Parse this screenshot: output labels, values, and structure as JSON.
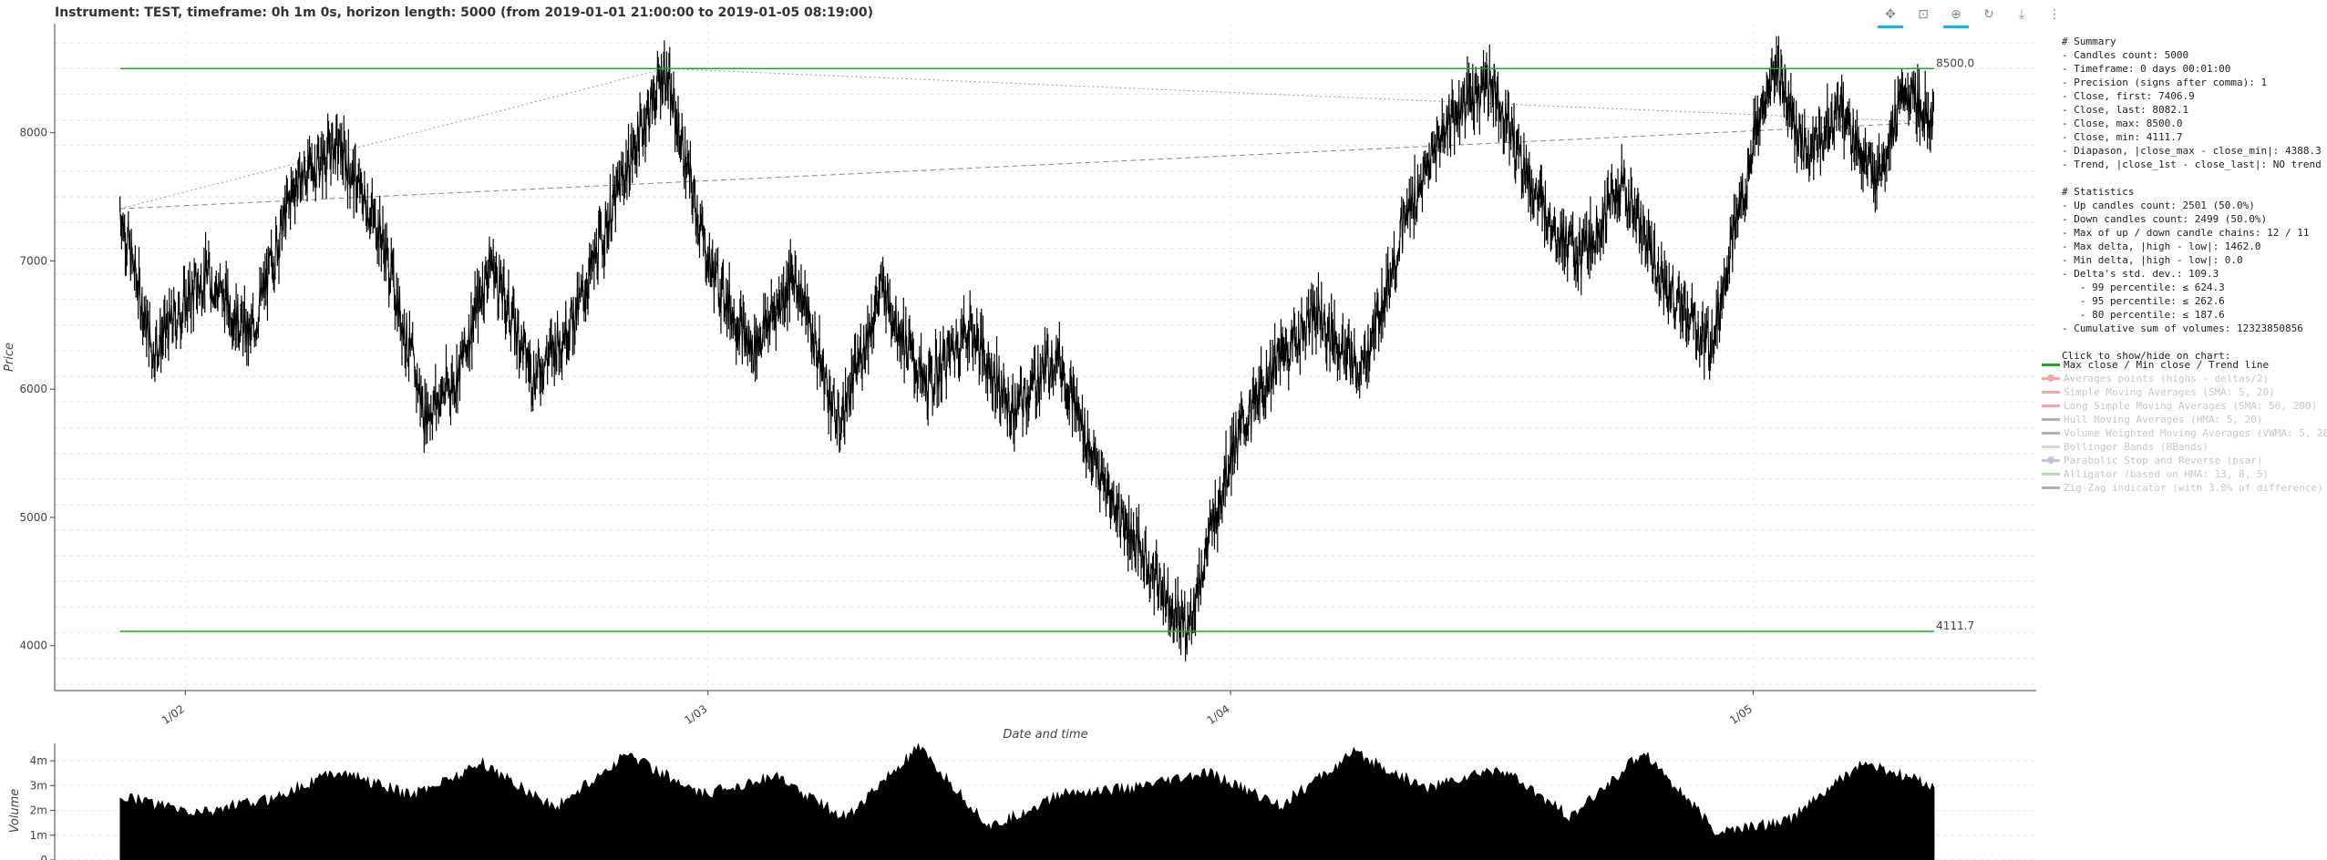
{
  "header": {
    "title": "Instrument: TEST, timeframe: 0h 1m 0s, horizon length: 5000 (from 2019-01-01 21:00:00 to 2019-01-05 08:19:00)"
  },
  "toolbar": {
    "tools": [
      {
        "name": "pan-tool",
        "glyph": "✥",
        "active": true
      },
      {
        "name": "box-zoom-tool",
        "glyph": "⊡",
        "active": false
      },
      {
        "name": "wheel-zoom-tool",
        "glyph": "⊕",
        "active": true
      },
      {
        "name": "reset-tool",
        "glyph": "↻",
        "active": false
      },
      {
        "name": "save-tool",
        "glyph": "⤓",
        "active": false
      },
      {
        "name": "more-tool",
        "glyph": "⋮",
        "active": false
      }
    ]
  },
  "summary": {
    "lines": [
      "# Summary",
      "- Candles count: 5000",
      "- Timeframe: 0 days 00:01:00",
      "- Precision (signs after comma): 1",
      "- Close, first: 7406.9",
      "- Close, last: 8082.1",
      "- Close, max: 8500.0",
      "- Close, min: 4111.7",
      "- Diapason, |close_max - close_min|: 4388.3",
      "- Trend, |close_1st - close_last|: NO trend",
      "",
      "# Statistics",
      "- Up candles count: 2501 (50.0%)",
      "- Down candles count: 2499 (50.0%)",
      "- Max of up / down candle chains: 12 / 11",
      "- Max delta, |high - low|: 1462.0",
      "- Min delta, |high - low|: 0.0",
      "- Delta's std. dev.: 109.3",
      "   - 99 percentile: ≤ 624.3",
      "   - 95 percentile: ≤ 262.6",
      "   - 80 percentile: ≤ 187.6",
      "- Cumulative sum of volumes: 12323850856",
      "",
      "Click to show/hide on chart:"
    ]
  },
  "legend": {
    "items": [
      {
        "label": "Max close / Min close / Trend line",
        "color": "#2ca02c",
        "muted": false,
        "marker": "line"
      },
      {
        "label": "Averages points (highs - deltas/2)",
        "color": "#f4a6a6",
        "muted": true,
        "marker": "dot"
      },
      {
        "label": "Simple Moving Averages (SMA: 5, 20)",
        "color": "#f4a6a6",
        "muted": true,
        "marker": "line"
      },
      {
        "label": "Long Simple Moving Averages (SMA: 50, 200)",
        "color": "#f4a6a6",
        "muted": true,
        "marker": "line"
      },
      {
        "label": "Hull Moving Averages (HMA: 5, 20)",
        "color": "#b0b0b0",
        "muted": true,
        "marker": "line"
      },
      {
        "label": "Volume Weighted Moving Averages (VWMA: 5, 20)",
        "color": "#b0b0b0",
        "muted": true,
        "marker": "line"
      },
      {
        "label": "Bollinger Bands (BBands)",
        "color": "#d8d8d8",
        "muted": true,
        "marker": "line"
      },
      {
        "label": "Parabolic Stop and Reverse (psar)",
        "color": "#c0c8d8",
        "muted": true,
        "marker": "dot"
      },
      {
        "label": "Alligator (based on HMA: 13, 8, 5)",
        "color": "#b8d8b8",
        "muted": true,
        "marker": "line"
      },
      {
        "label": "Zig-Zag indicator (with 3.0% of difference)",
        "color": "#b0b0b0",
        "muted": true,
        "marker": "line"
      }
    ]
  },
  "chart_data": [
    {
      "type": "line",
      "xlabel": "Date and time",
      "ylabel": "Price",
      "x_ticks": [
        "1/02",
        "1/03",
        "1/04",
        "1/05"
      ],
      "y_ticks": [
        4000,
        5000,
        6000,
        7000,
        8000
      ],
      "ylim": [
        3650,
        8850
      ],
      "xlim": [
        "2019-01-01 18:00",
        "2019-01-05 13:00"
      ],
      "grid": true,
      "close_path": [
        [
          "2019-01-01 21:00",
          7406.9
        ],
        [
          "2019-01-01 22:30",
          6300
        ],
        [
          "2019-01-02 01:00",
          6900
        ],
        [
          "2019-01-02 03:00",
          6400
        ],
        [
          "2019-01-02 05:00",
          7600
        ],
        [
          "2019-01-02 07:00",
          7900
        ],
        [
          "2019-01-02 09:00",
          7200
        ],
        [
          "2019-01-02 11:00",
          5800
        ],
        [
          "2019-01-02 12:30",
          6100
        ],
        [
          "2019-01-02 14:00",
          7000
        ],
        [
          "2019-01-02 16:00",
          6100
        ],
        [
          "2019-01-02 18:00",
          6600
        ],
        [
          "2019-01-02 20:00",
          7600
        ],
        [
          "2019-01-02 22:00",
          8500.0
        ],
        [
          "2019-01-03 00:00",
          7000
        ],
        [
          "2019-01-03 02:00",
          6300
        ],
        [
          "2019-01-03 04:00",
          6900
        ],
        [
          "2019-01-03 06:00",
          5700
        ],
        [
          "2019-01-03 08:00",
          6800
        ],
        [
          "2019-01-03 10:00",
          6000
        ],
        [
          "2019-01-03 12:00",
          6500
        ],
        [
          "2019-01-03 14:00",
          5800
        ],
        [
          "2019-01-03 16:00",
          6300
        ],
        [
          "2019-01-03 18:00",
          5300
        ],
        [
          "2019-01-03 20:00",
          4700
        ],
        [
          "2019-01-03 22:00",
          4111.7
        ],
        [
          "2019-01-04 00:00",
          5500
        ],
        [
          "2019-01-04 02:00",
          6200
        ],
        [
          "2019-01-04 04:00",
          6600
        ],
        [
          "2019-01-04 06:00",
          6100
        ],
        [
          "2019-01-04 08:00",
          7300
        ],
        [
          "2019-01-04 10:00",
          8100
        ],
        [
          "2019-01-04 12:00",
          8400
        ],
        [
          "2019-01-04 14:00",
          7500
        ],
        [
          "2019-01-04 16:00",
          7000
        ],
        [
          "2019-01-04 18:00",
          7600
        ],
        [
          "2019-01-04 20:00",
          6800
        ],
        [
          "2019-01-04 22:00",
          6300
        ],
        [
          "2019-01-05 00:00",
          7900
        ],
        [
          "2019-01-05 01:00",
          8500
        ],
        [
          "2019-01-05 02:30",
          7800
        ],
        [
          "2019-01-05 04:00",
          8200
        ],
        [
          "2019-01-05 05:30",
          7600
        ],
        [
          "2019-01-05 07:00",
          8300
        ],
        [
          "2019-01-05 08:19",
          8082.1
        ]
      ],
      "max_close": {
        "value": 8500.0,
        "label": "8500.0"
      },
      "min_close": {
        "value": 4111.7,
        "label": "4111.7"
      }
    },
    {
      "type": "area",
      "ylabel": "Volume",
      "y_ticks": [
        "0",
        "1m",
        "2m",
        "3m",
        "4m"
      ],
      "ylim": [
        0,
        4700000
      ],
      "volume_profile": [
        2.6,
        1.9,
        2.4,
        3.6,
        2.6,
        3.9,
        2.1,
        4.3,
        2.6,
        3.4,
        1.7,
        4.5,
        1.3,
        2.7,
        2.9,
        3.5,
        2.2,
        4.3,
        2.9,
        3.7,
        1.7,
        4.4,
        1.1,
        1.6,
        3.9,
        3.0
      ]
    }
  ]
}
